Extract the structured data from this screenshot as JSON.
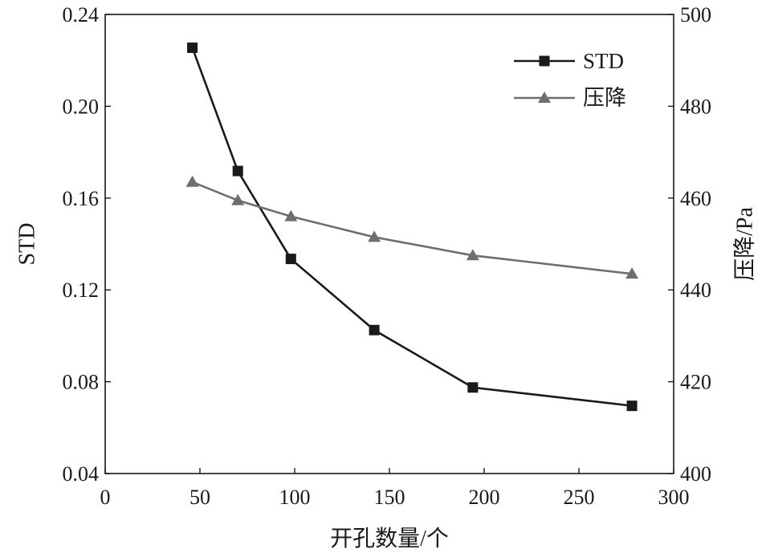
{
  "chart_data": {
    "type": "line",
    "xlabel": "开孔数量/个",
    "ylabel_left": "STD",
    "ylabel_right": "压降/Pa",
    "xlim": [
      0,
      300
    ],
    "ylim_left": [
      0.04,
      0.24
    ],
    "ylim_right": [
      400,
      500
    ],
    "x_ticks": [
      "0",
      "50",
      "100",
      "150",
      "200",
      "250",
      "300"
    ],
    "y_left_ticks": [
      "0.04",
      "0.08",
      "0.12",
      "0.16",
      "0.20",
      "0.24"
    ],
    "y_right_ticks": [
      "400",
      "420",
      "440",
      "460",
      "480",
      "500"
    ],
    "grid": false,
    "legend_position": "top-right",
    "series": [
      {
        "name": "STD",
        "axis": "left",
        "marker": "square",
        "color": "#1a1a1a",
        "x": [
          46,
          70,
          98,
          142,
          194,
          278
        ],
        "values": [
          0.2255,
          0.1718,
          0.1335,
          0.1025,
          0.0775,
          0.0695
        ]
      },
      {
        "name": "压降",
        "axis": "right",
        "marker": "triangle",
        "color": "#6e6e6e",
        "x": [
          46,
          70,
          98,
          142,
          194,
          278
        ],
        "values": [
          463.5,
          459.5,
          456,
          451.5,
          447.5,
          443.5
        ]
      }
    ]
  }
}
